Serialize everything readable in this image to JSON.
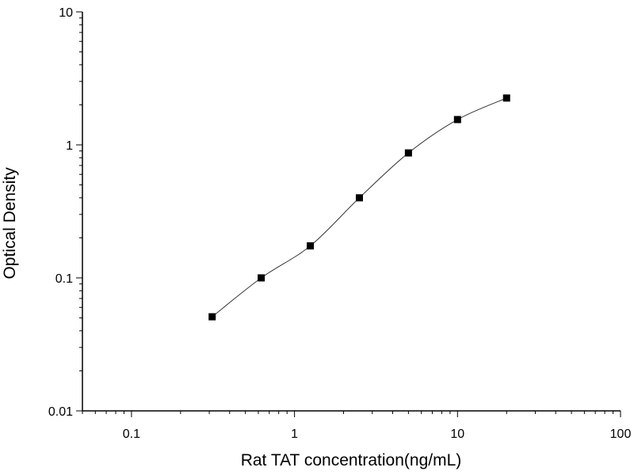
{
  "chart_data": {
    "type": "scatter",
    "title": "",
    "xlabel": "Rat TAT concentration(ng/mL)",
    "ylabel": "Optical Density",
    "x_scale": "log",
    "y_scale": "log",
    "xlim": [
      0.05,
      100
    ],
    "ylim": [
      0.01,
      10
    ],
    "x_ticks": [
      {
        "value": 0.1,
        "label": "0.1"
      },
      {
        "value": 1,
        "label": "1"
      },
      {
        "value": 10,
        "label": "10"
      },
      {
        "value": 100,
        "label": "100"
      }
    ],
    "y_ticks": [
      {
        "value": 0.01,
        "label": "0.01"
      },
      {
        "value": 0.1,
        "label": "0.1"
      },
      {
        "value": 1,
        "label": "1"
      },
      {
        "value": 10,
        "label": "10"
      }
    ],
    "grid": false,
    "legend": "none",
    "series": [
      {
        "x": [
          0.3125,
          0.625,
          1.25,
          2.5,
          5,
          10,
          20
        ],
        "y": [
          0.051,
          0.1,
          0.174,
          0.4,
          0.87,
          1.55,
          2.25
        ],
        "marker": "square",
        "color": "#000000",
        "fit_line": true
      }
    ]
  }
}
